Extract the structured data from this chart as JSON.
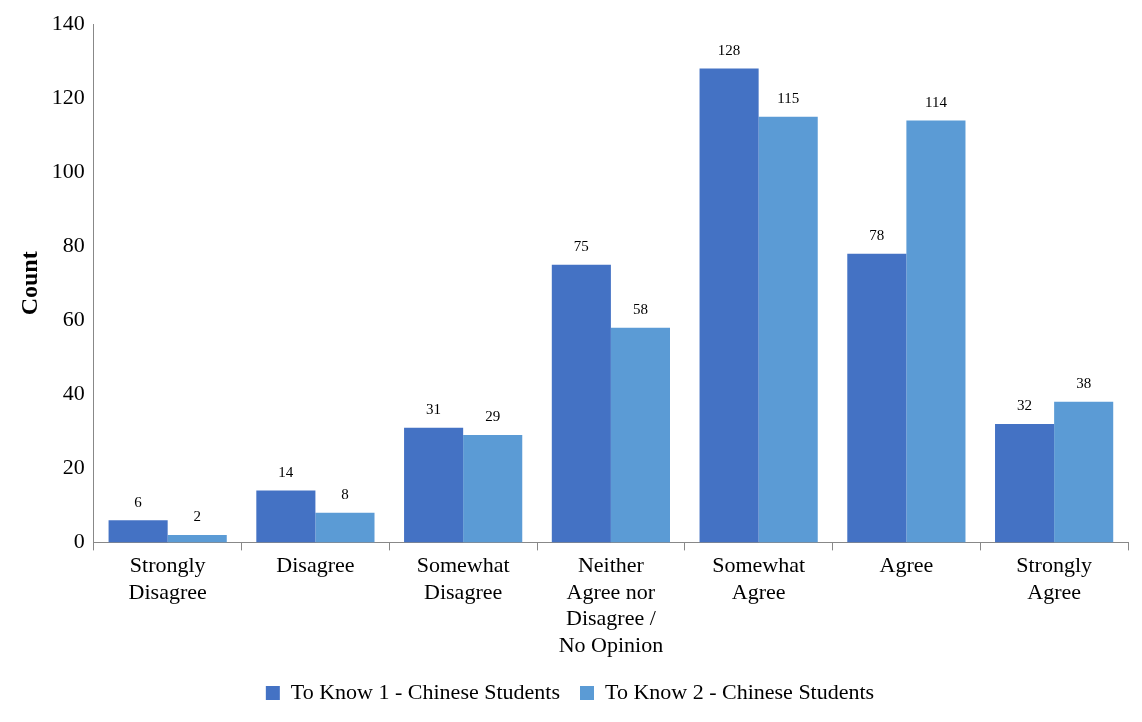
{
  "chart_data": {
    "type": "bar",
    "ylabel": "Count",
    "categories": [
      "Strongly Disagree",
      "Disagree",
      "Somewhat Disagree",
      "Neither Agree nor Disagree / No Opinion",
      "Somewhat Agree",
      "Agree",
      "Strongly Agree"
    ],
    "series": [
      {
        "name": "To Know 1 - Chinese Students",
        "color": "#4472c4",
        "values": [
          6,
          14,
          31,
          75,
          128,
          78,
          32
        ]
      },
      {
        "name": "To Know 2 - Chinese Students",
        "color": "#5b9bd5",
        "values": [
          2,
          8,
          29,
          58,
          115,
          114,
          38
        ]
      }
    ],
    "ylim": [
      0,
      140
    ],
    "yticks": [
      0,
      20,
      40,
      60,
      80,
      100,
      120,
      140
    ],
    "grid": false,
    "legend": "bottom",
    "data_labels": true
  }
}
